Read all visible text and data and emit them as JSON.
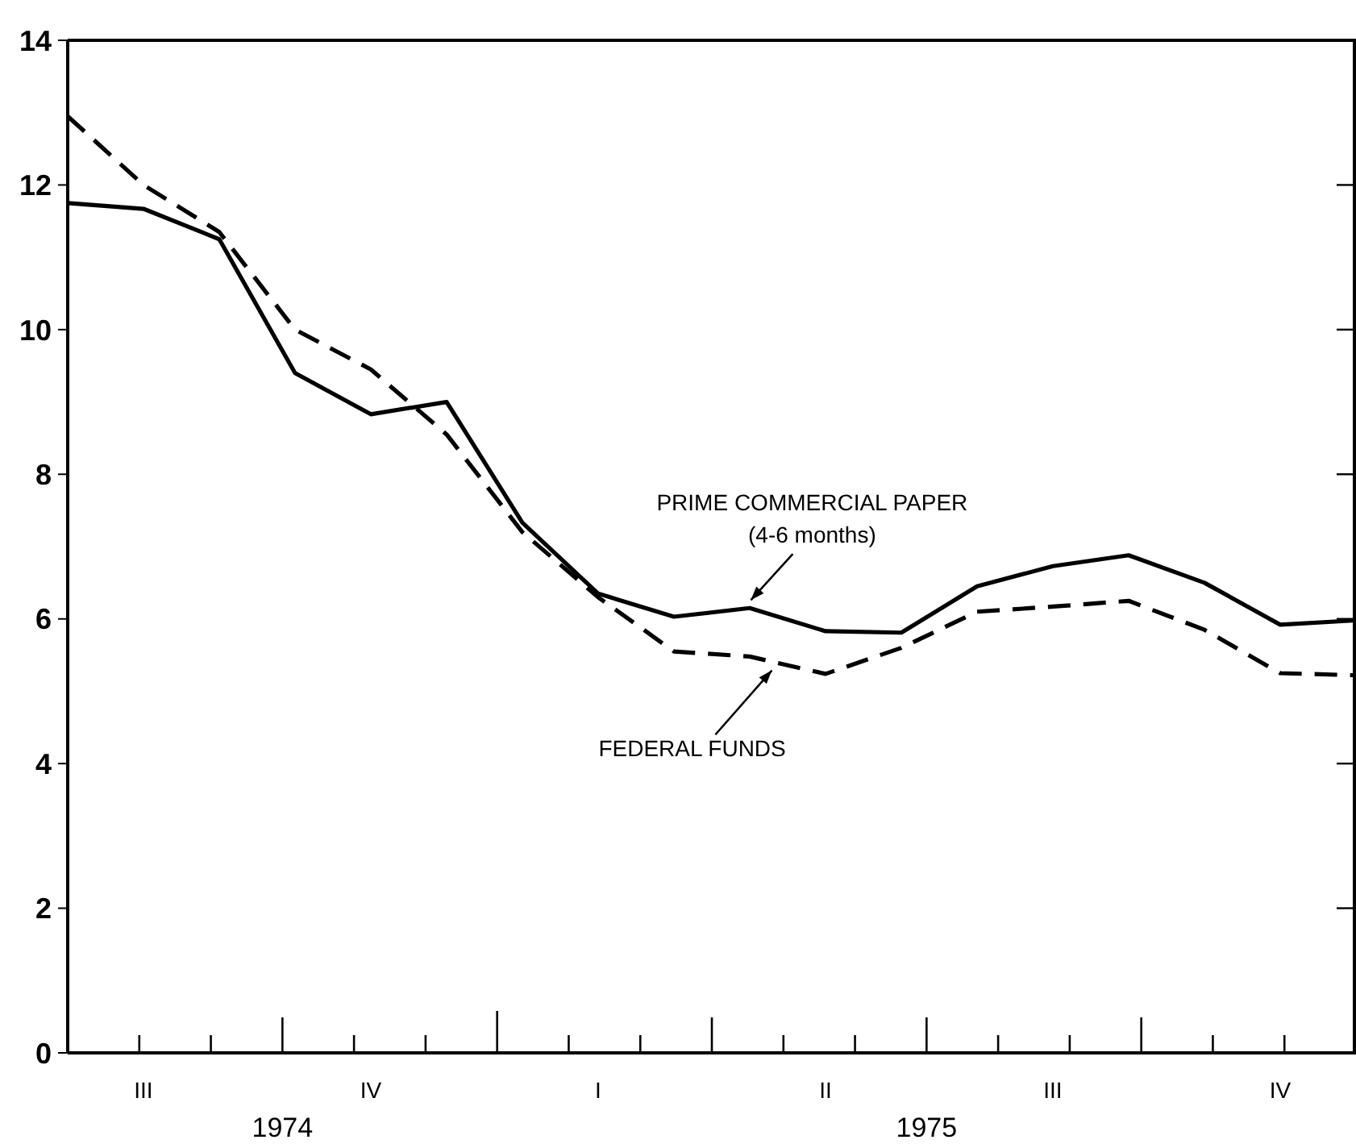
{
  "chart_data": {
    "type": "line",
    "categories": [
      null,
      "III",
      null,
      null,
      "IV",
      null,
      null,
      "I",
      null,
      null,
      "II",
      null,
      null,
      "III",
      null,
      null,
      "IV",
      null
    ],
    "series": [
      {
        "name": "PRIME COMMERCIAL PAPER (4-6 months)",
        "color": "#000000",
        "line_style": "solid",
        "values": [
          11.75,
          11.67,
          11.25,
          9.4,
          8.83,
          9.0,
          7.33,
          6.35,
          6.03,
          6.15,
          5.83,
          5.81,
          6.45,
          6.73,
          6.88,
          6.5,
          5.92,
          5.98
        ]
      },
      {
        "name": "FEDERAL FUNDS",
        "color": "#000000",
        "line_style": "dashed",
        "values": [
          12.95,
          12.0,
          11.35,
          10.0,
          9.45,
          8.55,
          7.2,
          6.3,
          5.55,
          5.48,
          5.24,
          5.6,
          6.1,
          6.17,
          6.25,
          5.85,
          5.25,
          5.22
        ]
      }
    ],
    "ylim": [
      0,
      14
    ],
    "yticks": [
      0,
      2,
      4,
      6,
      8,
      10,
      12,
      14
    ],
    "marker": "none",
    "grid": false,
    "legend": false,
    "annotations": [
      "1974",
      "1975"
    ]
  }
}
